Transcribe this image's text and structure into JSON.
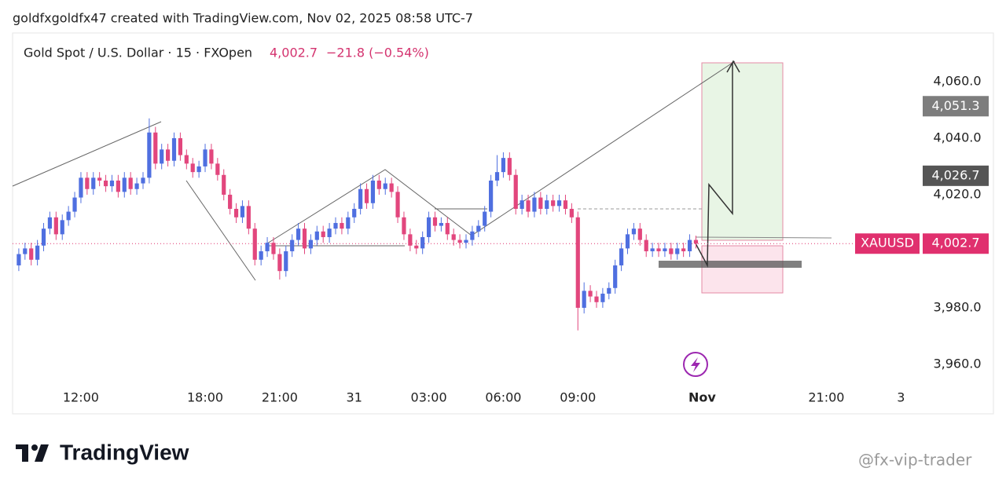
{
  "header": {
    "title": "goldfxgoldfx47 created with TradingView.com, Nov 02, 2025 08:58 UTC-7"
  },
  "footer": {
    "brand": "TradingView",
    "watermark": "@fx-vip-trader"
  },
  "chart_data": {
    "type": "candlestick",
    "legend": {
      "symbol_line": "Gold Spot / U.S. Dollar · 15 · FXOpen",
      "price": "4,002.7",
      "change": "−21.8 (−0.54%)"
    },
    "up_color": "#4f6fe0",
    "down_color": "#e2467d",
    "xlim": [
      -1,
      145
    ],
    "xticks": [
      {
        "value": 10,
        "label": "12:00"
      },
      {
        "value": 30,
        "label": "18:00"
      },
      {
        "value": 42,
        "label": "21:00"
      },
      {
        "value": 54,
        "label": "31"
      },
      {
        "value": 66,
        "label": "03:00"
      },
      {
        "value": 78,
        "label": "06:00"
      },
      {
        "value": 90,
        "label": "09:00"
      },
      {
        "value": 110,
        "label": "Nov"
      },
      {
        "value": 130,
        "label": "21:00"
      },
      {
        "value": 142,
        "label": "3"
      }
    ],
    "ylim": [
      3942.5,
      4077.2
    ],
    "yticks": [
      {
        "value": 3960,
        "label": "3,960.0"
      },
      {
        "value": 3980,
        "label": "3,980.0"
      },
      {
        "value": 4020,
        "label": "4,020.0"
      },
      {
        "value": 4040,
        "label": "4,040.0"
      },
      {
        "value": 4060,
        "label": "4,060.0"
      }
    ],
    "open": [
      3995,
      3999,
      4001,
      3997,
      4002,
      4008,
      4012,
      4006,
      4011,
      4014,
      4019,
      4026,
      4022,
      4026,
      4025,
      4023,
      4025,
      4021,
      4026,
      4022,
      4024,
      4026,
      4042,
      4031,
      4036,
      4032,
      4040,
      4034,
      4031,
      4028,
      4030,
      4036,
      4031,
      4027,
      4020,
      4015,
      4012,
      4016,
      4008,
      3997,
      4000,
      4003,
      3999,
      3993,
      4000,
      4004,
      4008,
      4001,
      4004,
      4007,
      4005,
      4008,
      4010,
      4008,
      4012,
      4015,
      4022,
      4017,
      4025,
      4022,
      4024,
      4021,
      4012,
      4006,
      4002,
      4001,
      4005,
      4012,
      4009,
      4010,
      4006,
      4004,
      4003,
      4004,
      4007,
      4009,
      4014,
      4025,
      4028,
      4033,
      4027,
      4015,
      4018,
      4014,
      4019,
      4015,
      4018,
      4016,
      4018,
      4015,
      4012,
      3980,
      3986,
      3984,
      3982,
      3985,
      3987,
      3995,
      4001,
      4006,
      4008,
      4004,
      4000,
      4001,
      4000,
      4001,
      3999,
      4001,
      4000,
      4004
    ],
    "high": [
      4001,
      4003,
      4003,
      4004,
      4010,
      4014,
      4014,
      4013,
      4016,
      4021,
      4028,
      4028,
      4028,
      4028,
      4027,
      4027,
      4027,
      4028,
      4028,
      4026,
      4028,
      4047,
      4044,
      4038,
      4038,
      4042,
      4042,
      4036,
      4033,
      4032,
      4038,
      4038,
      4033,
      4029,
      4022,
      4017,
      4018,
      4018,
      4010,
      4002,
      4005,
      4005,
      4001,
      4002,
      4006,
      4010,
      4010,
      4006,
      4009,
      4009,
      4010,
      4012,
      4012,
      4014,
      4017,
      4024,
      4024,
      4027,
      4027,
      4026,
      4026,
      4023,
      4014,
      4008,
      4004,
      4007,
      4014,
      4014,
      4012,
      4012,
      4008,
      4006,
      4006,
      4009,
      4011,
      4016,
      4027,
      4034,
      4035,
      4035,
      4029,
      4020,
      4020,
      4021,
      4021,
      4020,
      4020,
      4020,
      4020,
      4017,
      4014,
      3989,
      3988,
      3986,
      3987,
      3989,
      3997,
      4003,
      4008,
      4010,
      4010,
      4006,
      4003,
      4003,
      4003,
      4003,
      4003,
      4003,
      4006,
      4005.5
    ],
    "low": [
      3993,
      3997,
      3995,
      3995,
      4000,
      4006,
      4004,
      4004,
      4009,
      4012,
      4017,
      4020,
      4020,
      4023,
      4021,
      4021,
      4019,
      4019,
      4020,
      4020,
      4022,
      4024,
      4029,
      4029,
      4030,
      4030,
      4032,
      4029,
      4026,
      4026,
      4028,
      4029,
      4025,
      4018,
      4013,
      4010,
      4010,
      4006,
      3995,
      3995,
      3998,
      3997,
      3990,
      3991,
      3998,
      4002,
      3999,
      3999,
      4002,
      4003,
      4003,
      4006,
      4006,
      4006,
      4010,
      4013,
      4015,
      4015,
      4020,
      4020,
      4019,
      4010,
      4004,
      4000,
      3999,
      3999,
      4003,
      4007,
      4007,
      4004,
      4002,
      4001,
      4001,
      4002,
      4005,
      4007,
      4012,
      4023,
      4026,
      4025,
      4013,
      4013,
      4012,
      4012,
      4013,
      4013,
      4014,
      4014,
      4013,
      4010,
      3972,
      3978,
      3982,
      3980,
      3980,
      3983,
      3985,
      3993,
      3999,
      4004,
      4002,
      3998,
      3998,
      3998,
      3998,
      3997,
      3997,
      3998,
      3998,
      4001
    ],
    "close": [
      3999,
      4001,
      3997,
      4002,
      4008,
      4012,
      4006,
      4011,
      4014,
      4019,
      4026,
      4022,
      4026,
      4025,
      4023,
      4025,
      4021,
      4026,
      4022,
      4024,
      4026,
      4042,
      4031,
      4036,
      4032,
      4040,
      4034,
      4031,
      4028,
      4030,
      4036,
      4031,
      4027,
      4020,
      4015,
      4012,
      4016,
      4008,
      3997,
      4000,
      4003,
      3999,
      3993,
      4000,
      4004,
      4008,
      4001,
      4004,
      4007,
      4005,
      4008,
      4010,
      4008,
      4012,
      4015,
      4022,
      4017,
      4025,
      4022,
      4024,
      4021,
      4012,
      4006,
      4002,
      4001,
      4005,
      4012,
      4009,
      4010,
      4006,
      4004,
      4003,
      4004,
      4007,
      4009,
      4014,
      4025,
      4028,
      4033,
      4027,
      4015,
      4018,
      4014,
      4019,
      4015,
      4018,
      4016,
      4018,
      4015,
      4012,
      3980,
      3986,
      3984,
      3982,
      3985,
      3987,
      3995,
      4001,
      4006,
      4008,
      4004,
      4000,
      4001,
      4000,
      4001,
      3999,
      4001,
      4000,
      4004,
      4002.7
    ],
    "markers": [
      {
        "value": 4051.3,
        "label": "4,051.3",
        "color": "#7d7d7d"
      },
      {
        "value": 4026.7,
        "label": "4,026.7",
        "color": "#555555"
      }
    ],
    "last_price": {
      "symbol": "XAUUSD",
      "value": 4002.7,
      "label": "4,002.7",
      "color": "#e0306e"
    }
  }
}
